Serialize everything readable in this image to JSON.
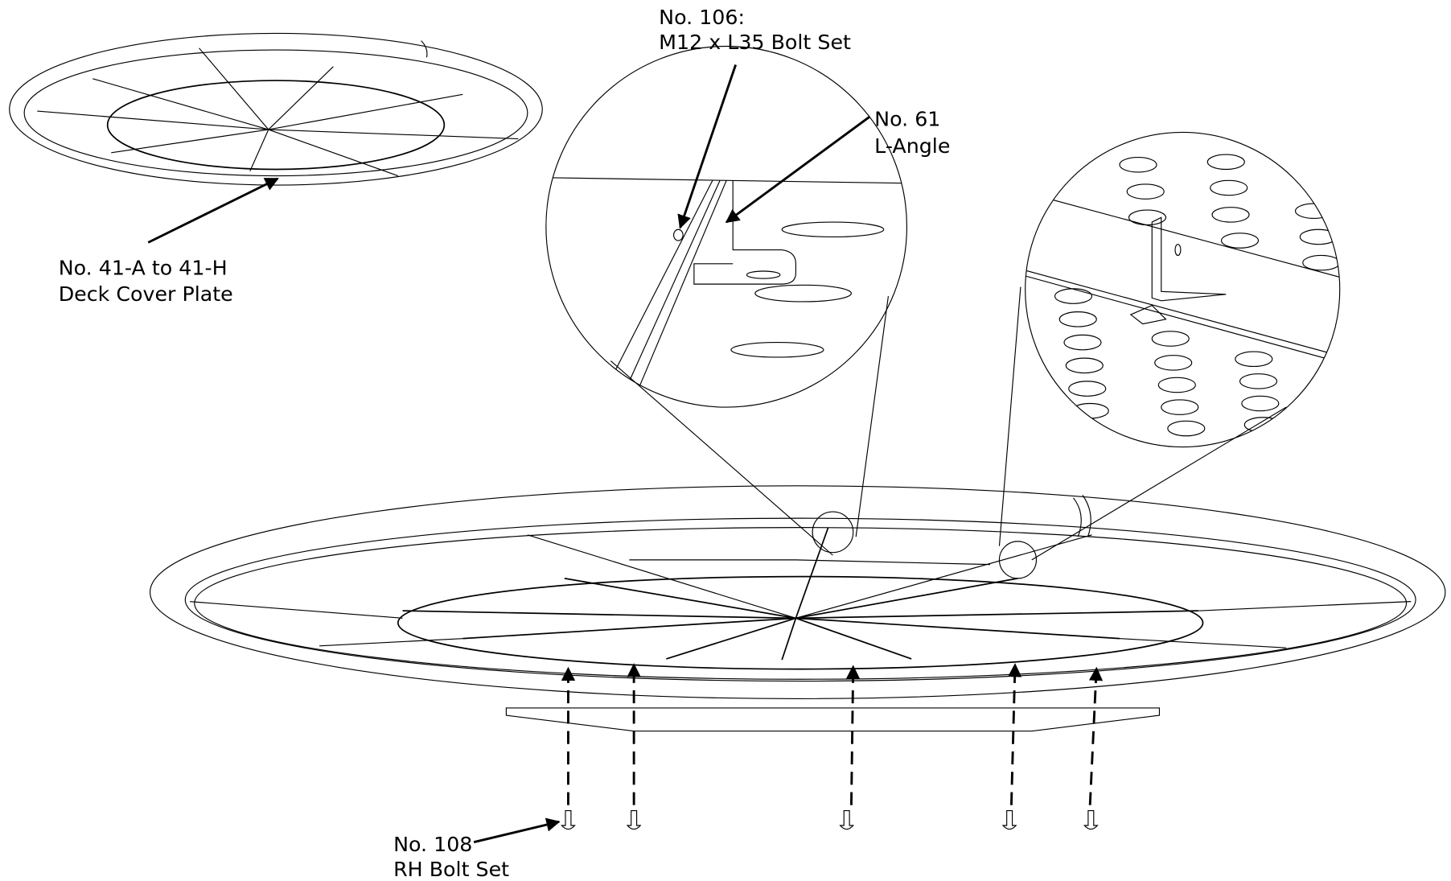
{
  "callouts": [
    {
      "number": "No. 106:",
      "description": "M12 x L35 Bolt Set"
    },
    {
      "number": "No. 61",
      "description": "L-Angle"
    },
    {
      "number": "No. 41-A to 41-H",
      "description": "Deck Cover Plate"
    },
    {
      "number": "No. 108",
      "description": "RH Bolt Set"
    }
  ]
}
